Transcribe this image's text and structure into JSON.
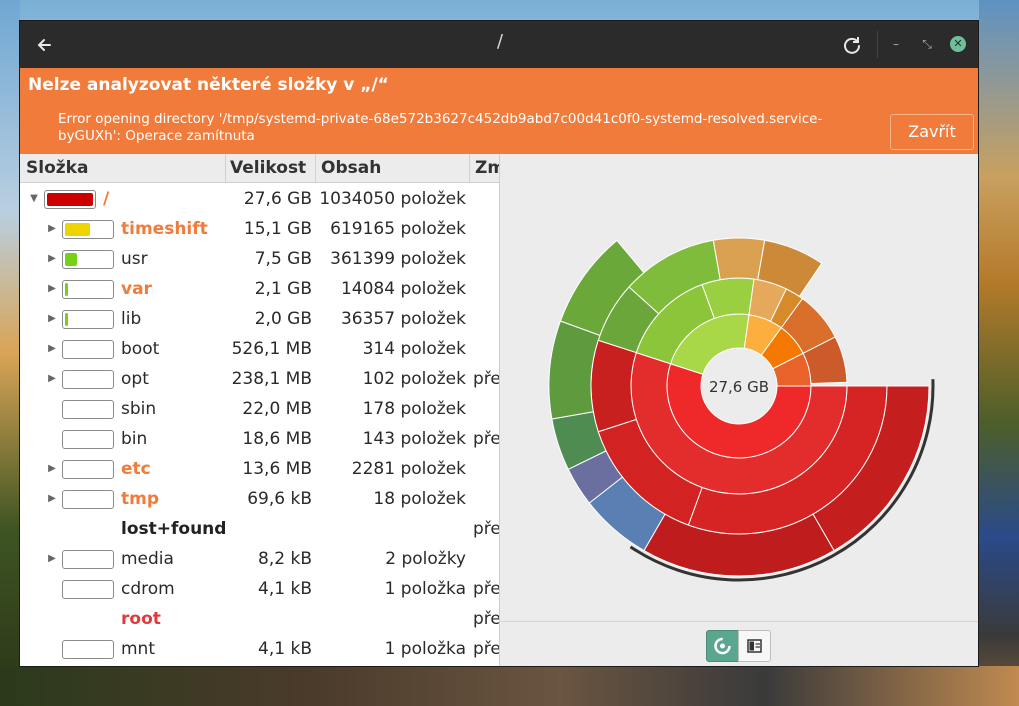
{
  "titlebar": {
    "back_icon": "go-back-icon",
    "title": "/",
    "refresh_icon": "refresh-icon",
    "minimize_glyph": "–",
    "maximize_glyph": "⤡",
    "close_glyph": "✕"
  },
  "infobar": {
    "title": "Nelze analyzovat některé složky v „/“",
    "message": "Error opening directory '/tmp/systemd-private-68e572b3627c452db9abd7c00d41c0f0-systemd-resolved.service-byGUXh': Operace zamítnuta",
    "close_label": "Zavřít"
  },
  "tree": {
    "columns": [
      "Složka",
      "Velikost",
      "Obsah",
      "Změ"
    ],
    "rows": [
      {
        "name": "/",
        "size": "27,6 GB",
        "count": "1034050 položek",
        "mod": "",
        "fill": 1.0,
        "fill_color": "#cc0000",
        "style": "warn",
        "expander": "down",
        "indent": 0
      },
      {
        "name": "timeshift",
        "size": "15,1 GB",
        "count": "619165 položek",
        "mod": "",
        "fill": 0.55,
        "fill_color": "#edd400",
        "style": "warn",
        "expander": "right",
        "indent": 1
      },
      {
        "name": "usr",
        "size": "7,5 GB",
        "count": "361399 položek",
        "mod": "",
        "fill": 0.27,
        "fill_color": "#73d216",
        "style": "",
        "expander": "right",
        "indent": 1
      },
      {
        "name": "var",
        "size": "2,1 GB",
        "count": "14084 položek",
        "mod": "",
        "fill": 0.076,
        "fill_color": "#73d216",
        "style": "warn",
        "expander": "right",
        "indent": 1
      },
      {
        "name": "lib",
        "size": "2,0 GB",
        "count": "36357 položek",
        "mod": "",
        "fill": 0.072,
        "fill_color": "#73d216",
        "style": "",
        "expander": "right",
        "indent": 1
      },
      {
        "name": "boot",
        "size": "526,1 MB",
        "count": "314 položek",
        "mod": "",
        "fill": 0.0,
        "fill_color": "#73d216",
        "style": "",
        "expander": "right",
        "indent": 1
      },
      {
        "name": "opt",
        "size": "238,1 MB",
        "count": "102 položek",
        "mod": "pře",
        "fill": 0.0,
        "fill_color": "#73d216",
        "style": "",
        "expander": "right",
        "indent": 1
      },
      {
        "name": "sbin",
        "size": "22,0 MB",
        "count": "178 položek",
        "mod": "",
        "fill": 0.0,
        "fill_color": "#73d216",
        "style": "",
        "expander": "",
        "indent": 1
      },
      {
        "name": "bin",
        "size": "18,6 MB",
        "count": "143 položek",
        "mod": "pře",
        "fill": 0.0,
        "fill_color": "#73d216",
        "style": "",
        "expander": "",
        "indent": 1
      },
      {
        "name": "etc",
        "size": "13,6 MB",
        "count": "2281 položek",
        "mod": "",
        "fill": 0.0,
        "fill_color": "#73d216",
        "style": "warn",
        "expander": "right",
        "indent": 1
      },
      {
        "name": "tmp",
        "size": "69,6 kB",
        "count": "18 položek",
        "mod": "",
        "fill": 0.0,
        "fill_color": "#73d216",
        "style": "warn",
        "expander": "right",
        "indent": 1
      },
      {
        "name": "lost+found",
        "size": "",
        "count": "",
        "mod": "pře",
        "fill": null,
        "fill_color": "",
        "style": "bold",
        "expander": "",
        "indent": 1
      },
      {
        "name": "media",
        "size": "8,2 kB",
        "count": "2 položky",
        "mod": "",
        "fill": 0.0,
        "fill_color": "#73d216",
        "style": "",
        "expander": "right",
        "indent": 1
      },
      {
        "name": "cdrom",
        "size": "4,1 kB",
        "count": "1 položka",
        "mod": "pře",
        "fill": 0.0,
        "fill_color": "#73d216",
        "style": "",
        "expander": "",
        "indent": 1
      },
      {
        "name": "root",
        "size": "",
        "count": "",
        "mod": "pře",
        "fill": null,
        "fill_color": "",
        "style": "err",
        "expander": "",
        "indent": 1
      },
      {
        "name": "mnt",
        "size": "4,1 kB",
        "count": "1 položka",
        "mod": "pře",
        "fill": 0.0,
        "fill_color": "#73d216",
        "style": "",
        "expander": "",
        "indent": 1
      }
    ]
  },
  "chart": {
    "center_label": "27,6 GB",
    "view_chart_icon": "ring-chart-icon",
    "view_tree_icon": "treemap-icon"
  },
  "colors": {
    "accent_orange": "#f07b3b",
    "titlebar": "#2b2b2b",
    "toggle_active": "#5aa68f"
  }
}
